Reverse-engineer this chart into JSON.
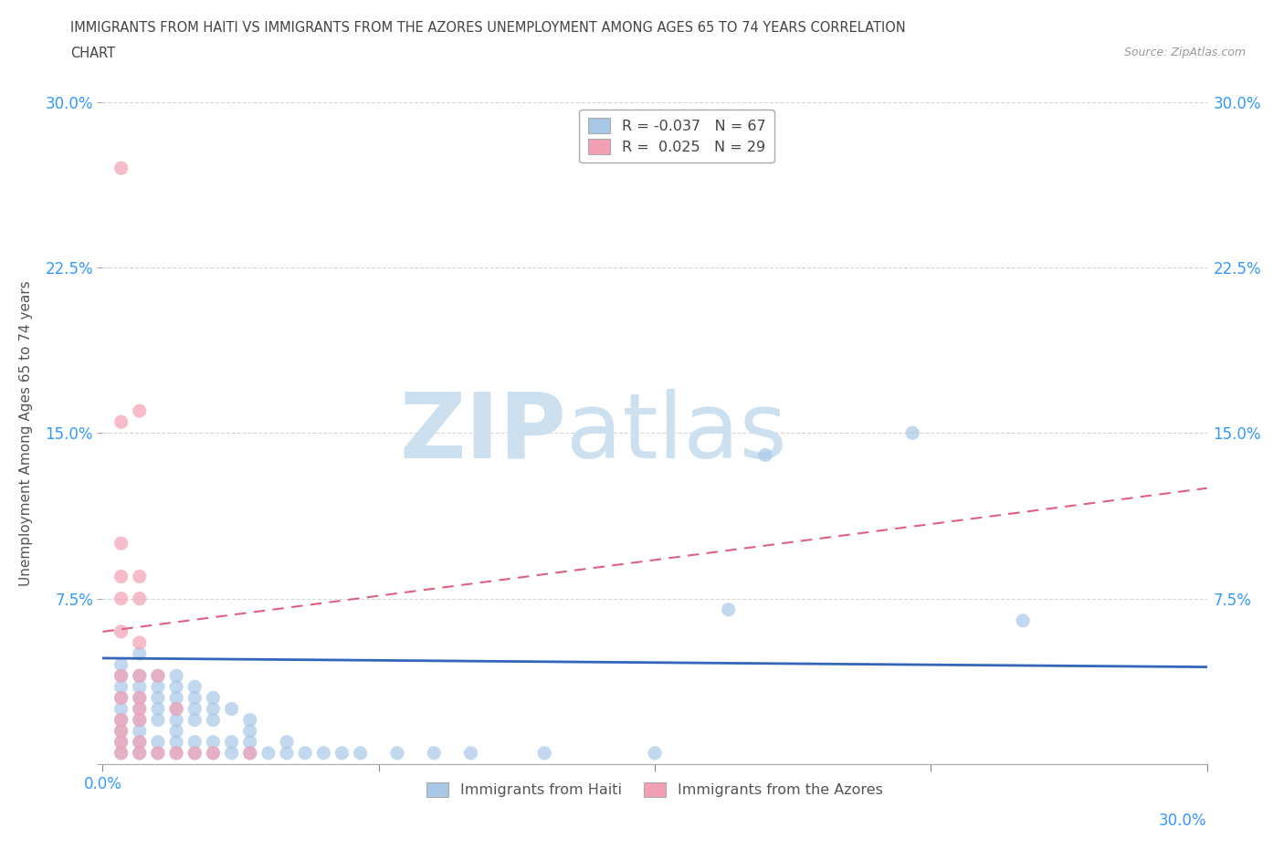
{
  "title_line1": "IMMIGRANTS FROM HAITI VS IMMIGRANTS FROM THE AZORES UNEMPLOYMENT AMONG AGES 65 TO 74 YEARS CORRELATION",
  "title_line2": "CHART",
  "source": "Source: ZipAtlas.com",
  "ylabel": "Unemployment Among Ages 65 to 74 years",
  "xlim": [
    0.0,
    0.3
  ],
  "ylim": [
    0.0,
    0.3
  ],
  "xtick_positions": [
    0.0,
    0.075,
    0.15,
    0.225,
    0.3
  ],
  "xticklabels_left": "0.0%",
  "xticklabels_right": "30.0%",
  "ytick_positions": [
    0.0,
    0.075,
    0.15,
    0.225,
    0.3
  ],
  "yticklabels": [
    "",
    "7.5%",
    "15.0%",
    "22.5%",
    "30.0%"
  ],
  "haiti_color": "#a8c8e8",
  "azores_color": "#f4a0b4",
  "haiti_R": -0.037,
  "haiti_N": 67,
  "azores_R": 0.025,
  "azores_N": 29,
  "legend_label_haiti": "Immigrants from Haiti",
  "legend_label_azores": "Immigrants from the Azores",
  "haiti_scatter": [
    [
      0.005,
      0.005
    ],
    [
      0.005,
      0.01
    ],
    [
      0.005,
      0.015
    ],
    [
      0.005,
      0.02
    ],
    [
      0.005,
      0.025
    ],
    [
      0.005,
      0.03
    ],
    [
      0.005,
      0.035
    ],
    [
      0.005,
      0.04
    ],
    [
      0.005,
      0.045
    ],
    [
      0.01,
      0.005
    ],
    [
      0.01,
      0.01
    ],
    [
      0.01,
      0.015
    ],
    [
      0.01,
      0.02
    ],
    [
      0.01,
      0.025
    ],
    [
      0.01,
      0.03
    ],
    [
      0.01,
      0.035
    ],
    [
      0.01,
      0.04
    ],
    [
      0.01,
      0.05
    ],
    [
      0.015,
      0.005
    ],
    [
      0.015,
      0.01
    ],
    [
      0.015,
      0.02
    ],
    [
      0.015,
      0.025
    ],
    [
      0.015,
      0.03
    ],
    [
      0.015,
      0.035
    ],
    [
      0.015,
      0.04
    ],
    [
      0.02,
      0.005
    ],
    [
      0.02,
      0.01
    ],
    [
      0.02,
      0.015
    ],
    [
      0.02,
      0.02
    ],
    [
      0.02,
      0.025
    ],
    [
      0.02,
      0.03
    ],
    [
      0.02,
      0.035
    ],
    [
      0.02,
      0.04
    ],
    [
      0.025,
      0.005
    ],
    [
      0.025,
      0.01
    ],
    [
      0.025,
      0.02
    ],
    [
      0.025,
      0.025
    ],
    [
      0.025,
      0.03
    ],
    [
      0.025,
      0.035
    ],
    [
      0.03,
      0.005
    ],
    [
      0.03,
      0.01
    ],
    [
      0.03,
      0.02
    ],
    [
      0.03,
      0.025
    ],
    [
      0.03,
      0.03
    ],
    [
      0.035,
      0.005
    ],
    [
      0.035,
      0.01
    ],
    [
      0.035,
      0.025
    ],
    [
      0.04,
      0.005
    ],
    [
      0.04,
      0.01
    ],
    [
      0.04,
      0.015
    ],
    [
      0.04,
      0.02
    ],
    [
      0.045,
      0.005
    ],
    [
      0.05,
      0.005
    ],
    [
      0.05,
      0.01
    ],
    [
      0.055,
      0.005
    ],
    [
      0.06,
      0.005
    ],
    [
      0.065,
      0.005
    ],
    [
      0.07,
      0.005
    ],
    [
      0.08,
      0.005
    ],
    [
      0.09,
      0.005
    ],
    [
      0.1,
      0.005
    ],
    [
      0.12,
      0.005
    ],
    [
      0.15,
      0.005
    ],
    [
      0.17,
      0.07
    ],
    [
      0.18,
      0.14
    ],
    [
      0.22,
      0.15
    ],
    [
      0.25,
      0.065
    ]
  ],
  "azores_scatter": [
    [
      0.005,
      0.005
    ],
    [
      0.005,
      0.01
    ],
    [
      0.005,
      0.015
    ],
    [
      0.005,
      0.02
    ],
    [
      0.005,
      0.03
    ],
    [
      0.005,
      0.04
    ],
    [
      0.005,
      0.06
    ],
    [
      0.005,
      0.075
    ],
    [
      0.005,
      0.085
    ],
    [
      0.005,
      0.1
    ],
    [
      0.005,
      0.155
    ],
    [
      0.01,
      0.005
    ],
    [
      0.01,
      0.01
    ],
    [
      0.01,
      0.02
    ],
    [
      0.01,
      0.025
    ],
    [
      0.01,
      0.03
    ],
    [
      0.01,
      0.04
    ],
    [
      0.01,
      0.055
    ],
    [
      0.01,
      0.075
    ],
    [
      0.01,
      0.085
    ],
    [
      0.01,
      0.16
    ],
    [
      0.015,
      0.005
    ],
    [
      0.015,
      0.04
    ],
    [
      0.02,
      0.005
    ],
    [
      0.02,
      0.025
    ],
    [
      0.025,
      0.005
    ],
    [
      0.03,
      0.005
    ],
    [
      0.04,
      0.005
    ],
    [
      0.005,
      0.27
    ]
  ],
  "haiti_trend": [
    0.0,
    0.3,
    0.048,
    0.044
  ],
  "azores_trend": [
    0.0,
    0.3,
    0.06,
    0.125
  ],
  "background_color": "#ffffff",
  "grid_color": "#cccccc",
  "title_color": "#444444",
  "axis_label_color": "#555555",
  "tick_color": "#3399ff",
  "watermark_color": "#cce0f0"
}
